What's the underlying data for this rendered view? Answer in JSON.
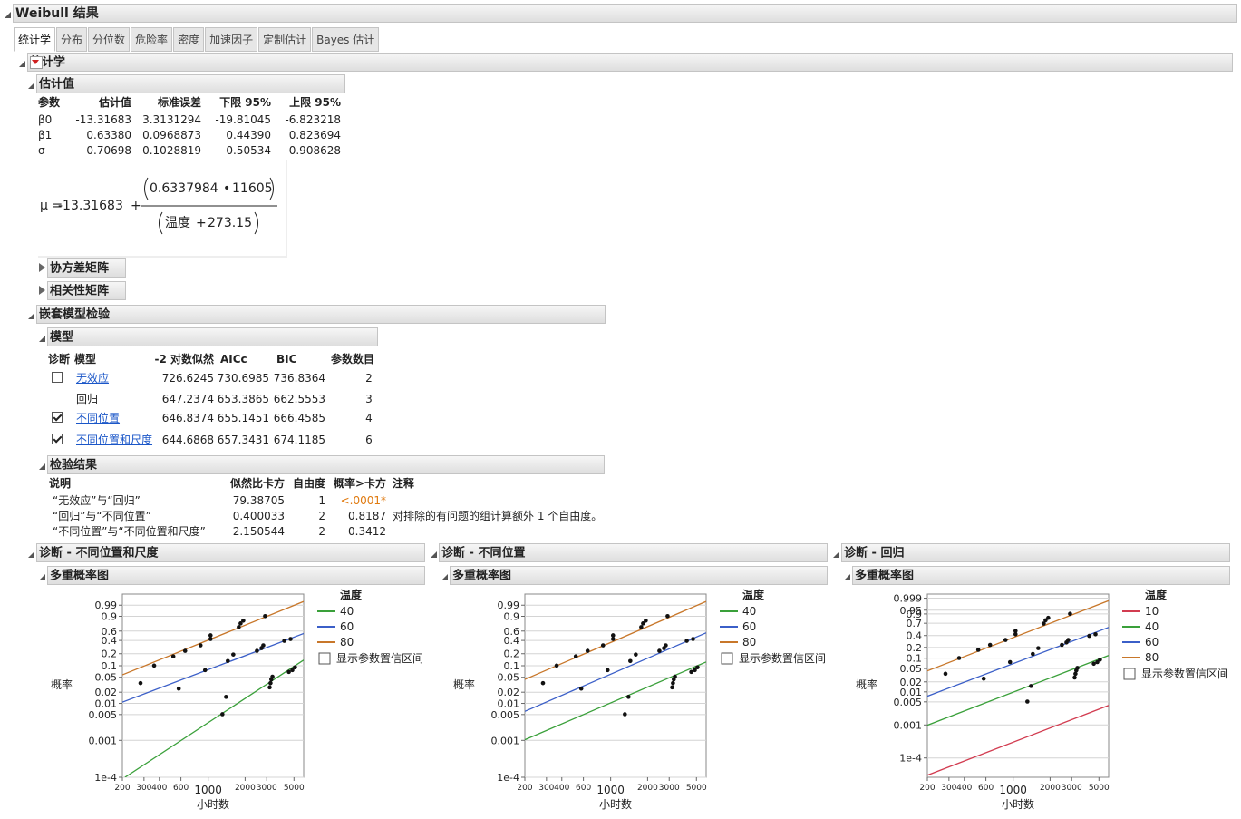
{
  "header": {
    "title": "Weibull 结果"
  },
  "tabs": [
    "统计学",
    "分布",
    "分位数",
    "危险率",
    "密度",
    "加速因子",
    "定制估计",
    "Bayes 估计"
  ],
  "statistics": {
    "title": "统计学",
    "estimates": {
      "title": "估计值",
      "columns": [
        "参数",
        "估计值",
        "标准误差",
        "下限 95%",
        "上限 95%"
      ],
      "rows": [
        [
          "β0",
          "-13.31683",
          "3.3131294",
          "-19.81045",
          "-6.823218"
        ],
        [
          "β1",
          "0.63380",
          "0.0968873",
          "0.44390",
          "0.823694"
        ],
        [
          "σ",
          "0.70698",
          "0.1028819",
          "0.50534",
          "0.908628"
        ]
      ]
    },
    "formula": {
      "lhs": "μ =",
      "intercept": "-13.31683",
      "plus": "+",
      "num_factor": "0.6337984",
      "times": "•",
      "num_const": "11605",
      "den_var": "温度",
      "den_plus": "+",
      "den_const": "273.15"
    },
    "collapsed": [
      "协方差矩阵",
      "相关性矩阵"
    ]
  },
  "nested": {
    "title": "嵌套模型检验",
    "models": {
      "title": "模型",
      "columns": [
        "诊断",
        "模型",
        "-2 对数似然",
        "AICc",
        "BIC",
        "参数数目"
      ],
      "rows": [
        {
          "checkbox": false,
          "name": "无效应",
          "link": true,
          "values": [
            "726.6245",
            "730.6985",
            "736.8364",
            "2"
          ]
        },
        {
          "name": "回归",
          "values": [
            "647.2374",
            "653.3865",
            "662.5553",
            "3"
          ]
        },
        {
          "checkbox": true,
          "name": "不同位置",
          "link": true,
          "values": [
            "646.8374",
            "655.1451",
            "666.4585",
            "4"
          ]
        },
        {
          "checkbox": true,
          "name": "不同位置和尺度",
          "link": true,
          "values": [
            "644.6868",
            "657.3431",
            "674.1185",
            "6"
          ]
        }
      ]
    },
    "tests": {
      "title": "检验结果",
      "columns": [
        "说明",
        "似然比卡方",
        "自由度",
        "概率>卡方",
        "注释"
      ],
      "rows": [
        {
          "desc": "“无效应”与“回归”",
          "chisq": "79.38705",
          "df": "1",
          "p": "<.0001*",
          "significant": true
        },
        {
          "desc": "“回归”与“不同位置”",
          "chisq": "0.400033",
          "df": "2",
          "p": "0.8187",
          "note": "对排除的有问题的组计算额外 1 个自由度。"
        },
        {
          "desc": "“不同位置”与“不同位置和尺度”",
          "chisq": "2.150544",
          "df": "2",
          "p": "0.3412"
        }
      ]
    }
  },
  "points": {
    "x": [
      281,
      363,
      520,
      649,
      867,
      1046,
      1046,
      1775,
      1837,
      1932,
      2910,
      576,
      944,
      1446,
      1602,
      2496,
      2720,
      2812,
      4170,
      4690,
      1306,
      1398,
      3170,
      3220,
      3270,
      3340,
      4540,
      4850,
      5100
    ],
    "y": [
      0.035,
      0.101,
      0.172,
      0.234,
      0.313,
      0.428,
      0.505,
      0.691,
      0.772,
      0.827,
      0.903,
      0.025,
      0.077,
      0.132,
      0.191,
      0.234,
      0.271,
      0.313,
      0.393,
      0.428,
      0.0051,
      0.015,
      0.027,
      0.035,
      0.044,
      0.052,
      0.069,
      0.077,
      0.091
    ]
  },
  "plots": [
    {
      "title": "诊断 - 不同位置和尺度",
      "subtitle": "多重概率图",
      "xlabel": "小时数",
      "ylabel": "概率",
      "legend_title": "温度",
      "checkbox_label": "显示参数置信区间",
      "xscale": "log",
      "yscale": "weibull",
      "grid": true,
      "xlim": [
        200,
        6000
      ],
      "ylim": [
        0.0001,
        0.9999
      ],
      "xticks": [
        200,
        300,
        400,
        600,
        1000,
        2000,
        3000,
        5000
      ],
      "yticks": [
        {
          "value": 0.0001,
          "label": "1e-4"
        },
        0.001,
        0.005,
        0.01,
        0.02,
        0.05,
        0.1,
        0.2,
        0.4,
        0.6,
        0.9,
        0.99
      ],
      "lines": [
        {
          "name": "40",
          "color": "#3aa03a",
          "x": [
            210,
            6000
          ],
          "y": [
            0.0001,
            0.14
          ]
        },
        {
          "name": "60",
          "color": "#3b5fc8",
          "x": [
            200,
            6000
          ],
          "y": [
            0.0108,
            0.545
          ]
        },
        {
          "name": "80",
          "color": "#c8772a",
          "x": [
            200,
            6000
          ],
          "y": [
            0.058,
            0.997
          ]
        }
      ]
    },
    {
      "title": "诊断 - 不同位置",
      "subtitle": "多重概率图",
      "xlabel": "小时数",
      "ylabel": "概率",
      "legend_title": "温度",
      "checkbox_label": "显示参数置信区间",
      "xscale": "log",
      "yscale": "weibull",
      "grid": true,
      "xlim": [
        200,
        6000
      ],
      "ylim": [
        0.0001,
        0.9999
      ],
      "xticks": [
        200,
        300,
        400,
        600,
        1000,
        2000,
        3000,
        5000
      ],
      "yticks": [
        {
          "value": 0.0001,
          "label": "1e-4"
        },
        0.001,
        0.005,
        0.01,
        0.02,
        0.05,
        0.1,
        0.2,
        0.4,
        0.6,
        0.9,
        0.99
      ],
      "lines": [
        {
          "name": "40",
          "color": "#3aa03a",
          "x": [
            200,
            6000
          ],
          "y": [
            0.00104,
            0.125
          ]
        },
        {
          "name": "60",
          "color": "#3b5fc8",
          "x": [
            200,
            6000
          ],
          "y": [
            0.0061,
            0.56
          ]
        },
        {
          "name": "80",
          "color": "#c8772a",
          "x": [
            200,
            6000
          ],
          "y": [
            0.044,
            0.997
          ]
        }
      ]
    },
    {
      "title": "诊断 - 回归",
      "subtitle": "多重概率图",
      "xlabel": "小时数",
      "ylabel": "概率",
      "legend_title": "温度",
      "checkbox_label": "显示参数置信区间",
      "xscale": "log",
      "yscale": "weibull",
      "grid": true,
      "xlim": [
        200,
        6000
      ],
      "ylim": [
        2.6e-05,
        0.9999
      ],
      "xticks": [
        200,
        300,
        400,
        600,
        1000,
        2000,
        3000,
        5000
      ],
      "yticks": [
        {
          "value": 0.0001,
          "label": "1e-4"
        },
        0.001,
        0.005,
        0.01,
        0.02,
        0.05,
        0.1,
        0.2,
        0.4,
        0.7,
        0.9,
        0.95,
        0.999
      ],
      "lines": [
        {
          "name": "10",
          "color": "#d23c50",
          "x": [
            200,
            6000
          ],
          "y": [
            3e-05,
            0.0039
          ]
        },
        {
          "name": "40",
          "color": "#3aa03a",
          "x": [
            200,
            6000
          ],
          "y": [
            0.00098,
            0.12
          ]
        },
        {
          "name": "60",
          "color": "#3b5fc8",
          "x": [
            200,
            6000
          ],
          "y": [
            0.0074,
            0.595
          ]
        },
        {
          "name": "80",
          "color": "#c8772a",
          "x": [
            200,
            6000
          ],
          "y": [
            0.0426,
            0.997
          ]
        }
      ]
    }
  ]
}
